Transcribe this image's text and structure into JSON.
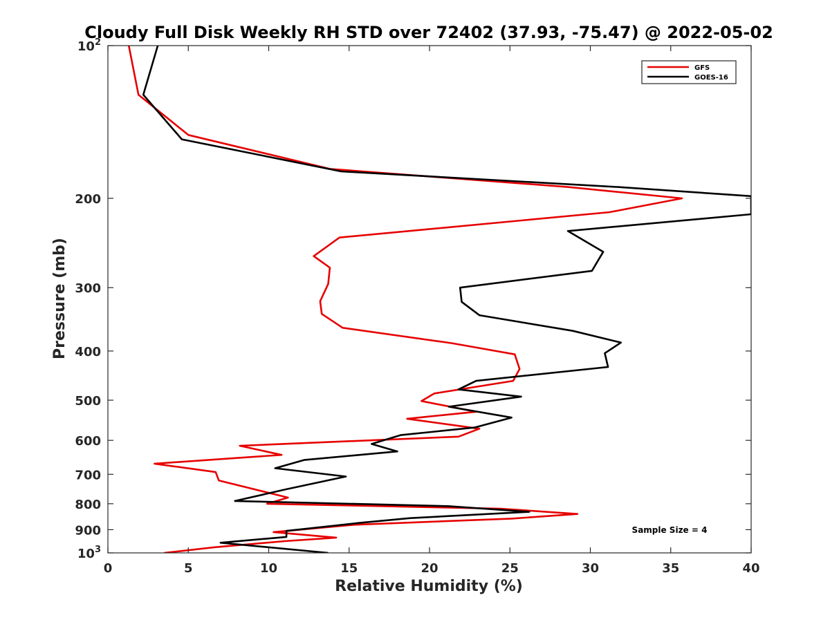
{
  "chart_data": {
    "type": "line",
    "title": "Cloudy Full Disk Weekly RH STD over 72402 (37.93, -75.47) @ 2022-05-02",
    "xlabel": "Relative Humidity (%)",
    "ylabel": "Pressure (mb)",
    "xlim": [
      0,
      40
    ],
    "ylim": [
      100,
      1000
    ],
    "y_scale": "log",
    "y_reversed": true,
    "grid": false,
    "x_ticks": [
      0,
      5,
      10,
      15,
      20,
      25,
      30,
      35,
      40
    ],
    "x_tick_labels": [
      "0",
      "5",
      "10",
      "15",
      "20",
      "25",
      "30",
      "35",
      "40"
    ],
    "y_ticks": [
      {
        "value": 100,
        "base": "10",
        "exp": "2"
      },
      {
        "value": 200,
        "label": "200"
      },
      {
        "value": 300,
        "label": "300"
      },
      {
        "value": 400,
        "label": "400"
      },
      {
        "value": 500,
        "label": "500"
      },
      {
        "value": 600,
        "label": "600"
      },
      {
        "value": 700,
        "label": "700"
      },
      {
        "value": 800,
        "label": "800"
      },
      {
        "value": 900,
        "label": "900"
      },
      {
        "value": 1000,
        "base": "10",
        "exp": "3"
      }
    ],
    "legend_position": "top-right",
    "annotation": "Sample Size = 4",
    "series": [
      {
        "name": "GFS",
        "color": "#e60000",
        "points": [
          [
            1.3,
            100
          ],
          [
            1.9,
            125
          ],
          [
            5.0,
            150
          ],
          [
            13.8,
            175
          ],
          [
            28.6,
            190
          ],
          [
            35.7,
            200
          ],
          [
            31.2,
            213
          ],
          [
            14.4,
            239
          ],
          [
            12.8,
            260
          ],
          [
            13.8,
            274
          ],
          [
            13.7,
            295
          ],
          [
            13.2,
            319
          ],
          [
            13.3,
            338
          ],
          [
            14.6,
            360
          ],
          [
            21.4,
            386
          ],
          [
            25.3,
            406
          ],
          [
            25.6,
            434
          ],
          [
            25.2,
            458
          ],
          [
            20.3,
            485
          ],
          [
            19.5,
            502
          ],
          [
            22.9,
            527
          ],
          [
            18.6,
            544
          ],
          [
            23.1,
            569
          ],
          [
            21.8,
            590
          ],
          [
            8.2,
            615
          ],
          [
            10.8,
            641
          ],
          [
            2.9,
            667
          ],
          [
            6.7,
            693
          ],
          [
            6.9,
            720
          ],
          [
            11.2,
            778
          ],
          [
            9.9,
            800
          ],
          [
            24.4,
            818
          ],
          [
            29.2,
            838
          ],
          [
            25.1,
            856
          ],
          [
            15.3,
            880
          ],
          [
            10.3,
            910
          ],
          [
            14.2,
            933
          ],
          [
            11.0,
            948
          ],
          [
            6.6,
            975
          ],
          [
            3.5,
            1000
          ]
        ]
      },
      {
        "name": "GOES-16",
        "color": "#000000",
        "points": [
          [
            3.1,
            100
          ],
          [
            2.2,
            125
          ],
          [
            4.6,
            153
          ],
          [
            14.5,
            177
          ],
          [
            31.7,
            190
          ],
          [
            40.0,
            198
          ],
          [
            40.0,
            215
          ],
          [
            28.6,
            232
          ],
          [
            30.8,
            255
          ],
          [
            30.1,
            278
          ],
          [
            21.9,
            300
          ],
          [
            22.0,
            320
          ],
          [
            23.1,
            340
          ],
          [
            28.9,
            365
          ],
          [
            31.9,
            385
          ],
          [
            30.9,
            404
          ],
          [
            31.1,
            430
          ],
          [
            22.9,
            458
          ],
          [
            21.8,
            476
          ],
          [
            25.7,
            492
          ],
          [
            21.2,
            515
          ],
          [
            25.1,
            541
          ],
          [
            22.8,
            566
          ],
          [
            18.2,
            586
          ],
          [
            16.4,
            610
          ],
          [
            18.0,
            631
          ],
          [
            12.2,
            656
          ],
          [
            10.4,
            681
          ],
          [
            14.8,
            707
          ],
          [
            11.1,
            749
          ],
          [
            7.9,
            790
          ],
          [
            21.2,
            809
          ],
          [
            26.2,
            830
          ],
          [
            18.8,
            854
          ],
          [
            15.6,
            873
          ],
          [
            11.1,
            905
          ],
          [
            11.1,
            930
          ],
          [
            7.0,
            955
          ],
          [
            13.7,
            1000
          ]
        ]
      }
    ]
  }
}
